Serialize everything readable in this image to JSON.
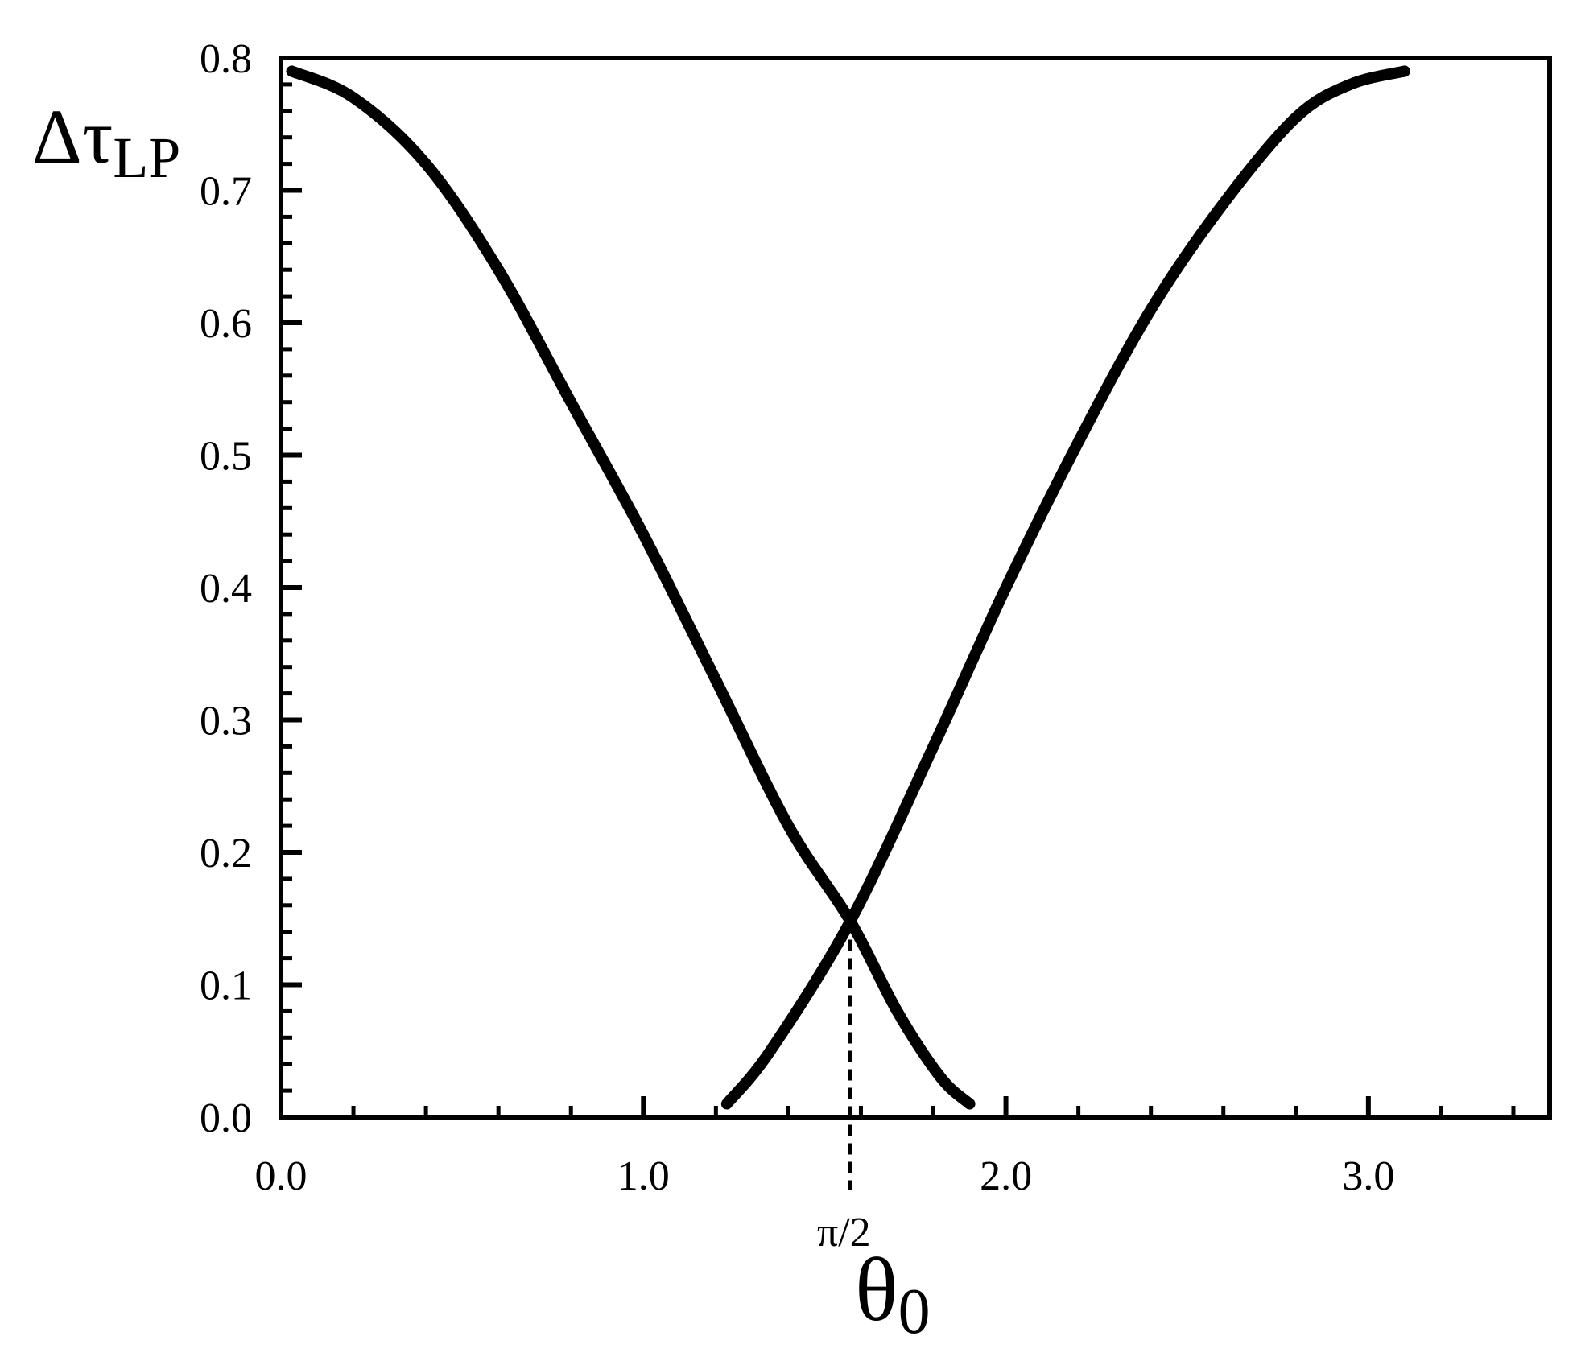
{
  "chart_data": {
    "type": "line",
    "title": "",
    "xlabel": "θ",
    "xlabel_sub": "0",
    "ylabel": "Δτ",
    "ylabel_sub": "LP",
    "xlim": [
      0.0,
      3.5
    ],
    "ylim": [
      0.0,
      0.8
    ],
    "x_ticks": [
      {
        "value": 0.0,
        "label": "0.0"
      },
      {
        "value": 1.0,
        "label": "1.0"
      },
      {
        "value": 2.0,
        "label": "2.0"
      },
      {
        "value": 3.0,
        "label": "3.0"
      }
    ],
    "x_minor_step": 0.2,
    "y_ticks": [
      {
        "value": 0.0,
        "label": "0.0"
      },
      {
        "value": 0.1,
        "label": "0.1"
      },
      {
        "value": 0.2,
        "label": "0.2"
      },
      {
        "value": 0.3,
        "label": "0.3"
      },
      {
        "value": 0.4,
        "label": "0.4"
      },
      {
        "value": 0.5,
        "label": "0.5"
      },
      {
        "value": 0.6,
        "label": "0.6"
      },
      {
        "value": 0.7,
        "label": "0.7"
      },
      {
        "value": 0.8,
        "label": "0.8"
      }
    ],
    "y_minor_step": 0.02,
    "grid": false,
    "line_color": "#000000",
    "series": [
      {
        "x": [
          0.03,
          0.2,
          0.4,
          0.6,
          0.8,
          1.0,
          1.2,
          1.4,
          1.5708,
          1.7,
          1.82,
          1.9
        ],
        "y": [
          0.79,
          0.77,
          0.72,
          0.64,
          0.54,
          0.44,
          0.33,
          0.22,
          0.148,
          0.08,
          0.03,
          0.01
        ]
      },
      {
        "x": [
          1.23,
          1.35,
          1.5708,
          1.8,
          2.0,
          2.2,
          2.4,
          2.6,
          2.8,
          2.95,
          3.1
        ],
        "y": [
          0.01,
          0.05,
          0.148,
          0.28,
          0.4,
          0.51,
          0.61,
          0.69,
          0.755,
          0.78,
          0.79
        ]
      }
    ],
    "annotations": [
      {
        "type": "vline",
        "x": 1.5708,
        "y_from": 0.148,
        "y_to": -0.055,
        "style": "dashed",
        "label": "π/2"
      }
    ]
  }
}
